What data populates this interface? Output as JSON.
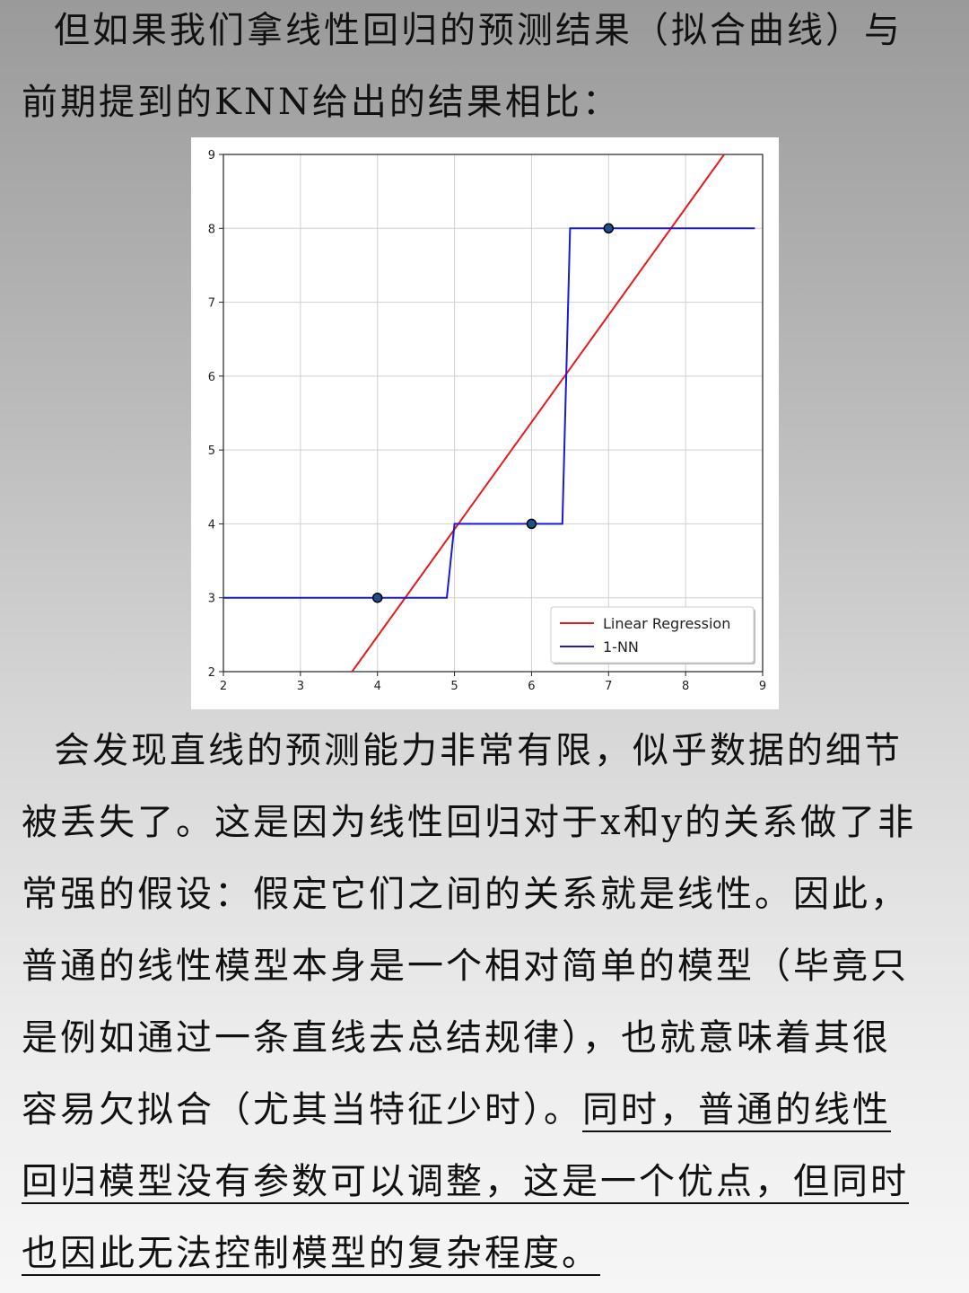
{
  "intro": {
    "text": "但如果我们拿线性回归的预测结果（拟合曲线）与前期提到的KNN给出的结果相比："
  },
  "chart_data": {
    "type": "line",
    "xlim": [
      2,
      9
    ],
    "ylim": [
      2,
      9
    ],
    "x_ticks": [
      "2",
      "3",
      "4",
      "5",
      "6",
      "7",
      "8",
      "9"
    ],
    "y_ticks": [
      "2",
      "3",
      "4",
      "5",
      "6",
      "7",
      "8",
      "9"
    ],
    "grid": true,
    "legend_position": "lower-right",
    "points": [
      {
        "x": 4,
        "y": 3
      },
      {
        "x": 6,
        "y": 4
      },
      {
        "x": 7,
        "y": 8
      }
    ],
    "series": [
      {
        "name": "Linear Regression",
        "color": "#e8191c",
        "x": [
          3.67,
          8.5
        ],
        "y": [
          2.0,
          9.0
        ]
      },
      {
        "name": "1-NN",
        "color": "#1a1ad6",
        "x": [
          2,
          4.9,
          5.0,
          6.4,
          6.5,
          8.9
        ],
        "y": [
          3,
          3,
          4,
          4,
          8,
          8
        ]
      }
    ]
  },
  "body": {
    "text": "会发现直线的预测能力非常有限，似乎数据的细节被丢失了。这是因为线性回归对于x和y的关系做了非常强的假设：假定它们之间的关系就是线性。因此，普通的线性模型本身是一个相对简单的模型（毕竟只是例如通过一条直线去总结规律），也就意味着其很容易欠拟合（尤其当特征少时）。",
    "underlined": "同时，普通的线性回归模型没有参数可以调整，这是一个优点，但同时也因此无法控制模型的复杂程度。"
  }
}
